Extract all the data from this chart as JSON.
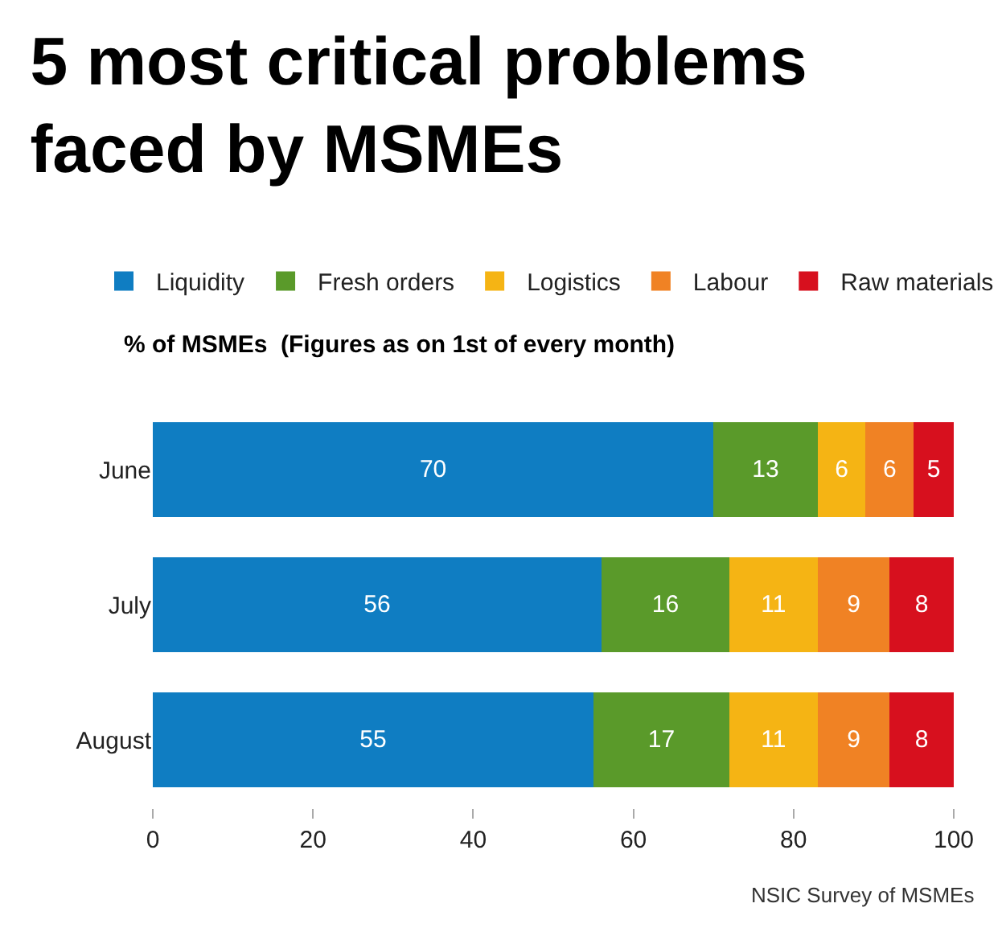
{
  "chart_data": {
    "type": "bar",
    "orientation": "horizontal",
    "stacked": true,
    "title": "5 most critical problems\nfaced by MSMEs",
    "subtitle": "% of MSMEs  (Figures as on 1st of every month)",
    "categories": [
      "June",
      "July",
      "August"
    ],
    "series": [
      {
        "name": "Liquidity",
        "color": "#0f7dc2",
        "values": [
          70,
          56,
          55
        ]
      },
      {
        "name": "Fresh orders",
        "color": "#5a9a2a",
        "values": [
          13,
          16,
          17
        ]
      },
      {
        "name": "Logistics",
        "color": "#f5b414",
        "values": [
          6,
          11,
          11
        ]
      },
      {
        "name": "Labour",
        "color": "#f08224",
        "values": [
          6,
          9,
          9
        ]
      },
      {
        "name": "Raw materials",
        "color": "#d7101e",
        "values": [
          5,
          8,
          8
        ]
      }
    ],
    "xlim": [
      0,
      100
    ],
    "xticks": [
      0,
      20,
      40,
      60,
      80,
      100
    ],
    "data_labels": true,
    "legend": "top",
    "annotations": [
      "NSIC Survey of MSMEs"
    ]
  }
}
